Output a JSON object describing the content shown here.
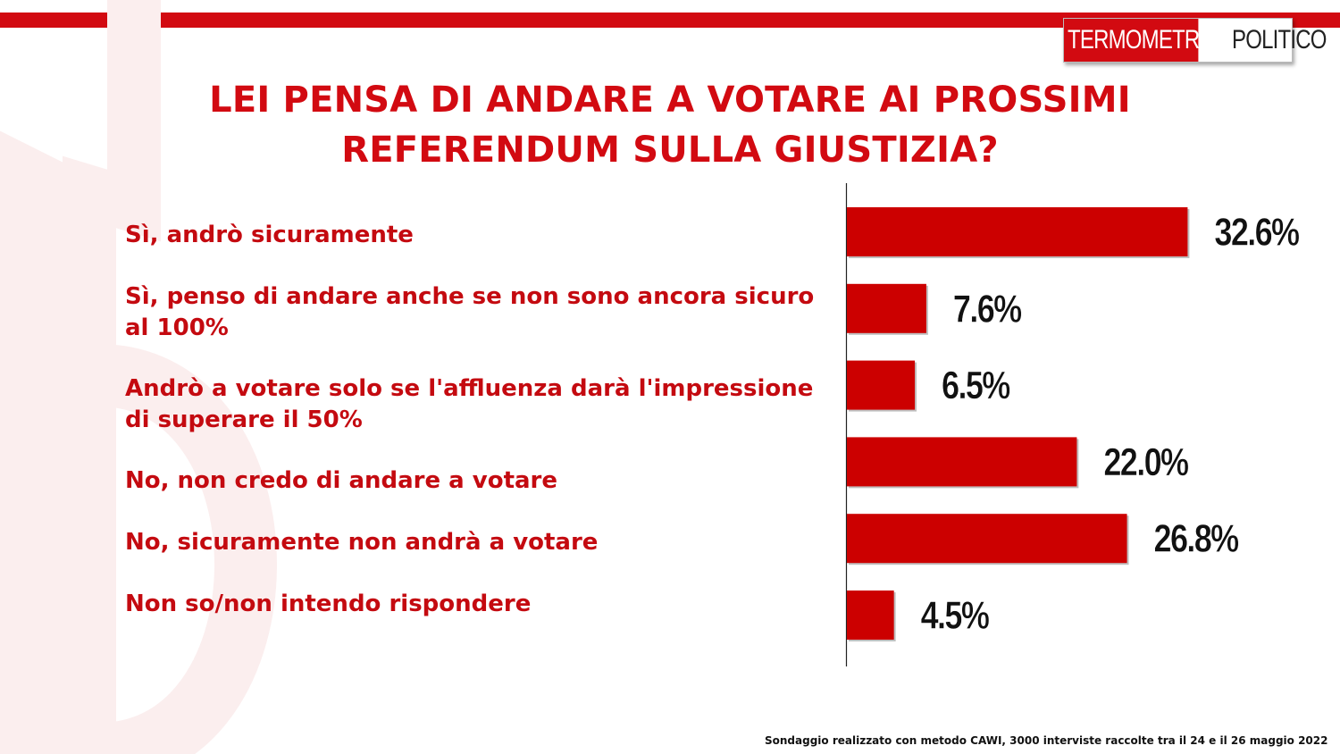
{
  "header": {
    "logo_left": "TERMOMETRO",
    "logo_right": "POLITICO"
  },
  "colors": {
    "accent": "#d20a11",
    "bar": "#cc0000",
    "label_text": "#c40a10",
    "value_text": "#111111"
  },
  "chart_data": {
    "type": "bar",
    "orientation": "horizontal",
    "title_lines": [
      "LEI PENSA DI ANDARE A VOTARE AI PROSSIMI",
      "REFERENDUM SULLA GIUSTIZIA?"
    ],
    "categories": [
      "Sì, andrò sicuramente",
      "Sì, penso di andare anche se non sono ancora sicuro al 100%",
      "Andrò a votare solo se l'affluenza darà l'impressione di superare il 50%",
      "No, non credo di andare a votare",
      "No, sicuramente non andrà a votare",
      "Non so/non intendo rispondere"
    ],
    "values": [
      32.6,
      7.6,
      6.5,
      22.0,
      26.8,
      4.5
    ],
    "value_labels": [
      "32.6%",
      "7.6%",
      "6.5%",
      "22.0%",
      "26.8%",
      "4.5%"
    ],
    "unit": "%",
    "grid": false,
    "legend": "none"
  },
  "footnote": "Sondaggio realizzato con metodo CAWI, 3000 interviste raccolte tra il 24 e il 26 maggio 2022"
}
